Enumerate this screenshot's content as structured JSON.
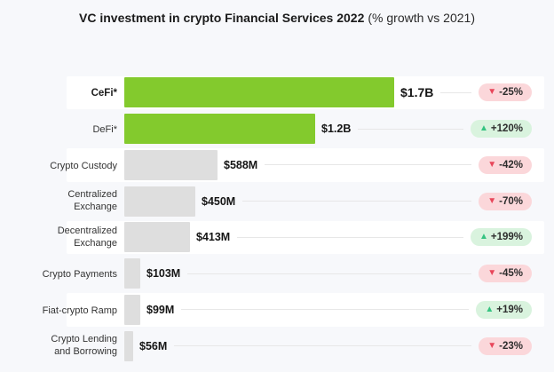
{
  "title": {
    "main": "VC investment in crypto Financial Services 2022",
    "sub": "(% growth vs 2021)"
  },
  "icons": {
    "up": "▲",
    "down": "▼"
  },
  "colors": {
    "page_bg": "#f7f8fb",
    "row_band": "#ffffff",
    "green_bar": "#83ca2d",
    "gray_bar": "#dedede",
    "badge_down_bg": "#fbd7da",
    "badge_up_bg": "#d9f3de",
    "triangle_down": "#e8465a",
    "triangle_up": "#35c381"
  },
  "chart_data": {
    "type": "bar",
    "orientation": "horizontal",
    "title": "VC investment in crypto Financial Services 2022 (% growth vs 2021)",
    "value_unit": "USD millions",
    "max_value_musd": 1700,
    "legend": "none",
    "grid": false,
    "rows": [
      {
        "label": "CeFi*",
        "value_musd": 1700,
        "value_label": "$1.7B",
        "change": "-25%",
        "direction": "down",
        "bar_color": "green",
        "emphasis": true
      },
      {
        "label": "DeFi*",
        "value_musd": 1200,
        "value_label": "$1.2B",
        "change": "+120%",
        "direction": "up",
        "bar_color": "green",
        "emphasis": false
      },
      {
        "label": "Crypto Custody",
        "value_musd": 588,
        "value_label": "$588M",
        "change": "-42%",
        "direction": "down",
        "bar_color": "gray",
        "emphasis": false
      },
      {
        "label": "Centralized Exchange",
        "value_musd": 450,
        "value_label": "$450M",
        "change": "-70%",
        "direction": "down",
        "bar_color": "gray",
        "emphasis": false
      },
      {
        "label": "Decentralized Exchange",
        "value_musd": 413,
        "value_label": "$413M",
        "change": "+199%",
        "direction": "up",
        "bar_color": "gray",
        "emphasis": false
      },
      {
        "label": "Crypto Payments",
        "value_musd": 103,
        "value_label": "$103M",
        "change": "-45%",
        "direction": "down",
        "bar_color": "gray",
        "emphasis": false
      },
      {
        "label": "Fiat-crypto Ramp",
        "value_musd": 99,
        "value_label": "$99M",
        "change": "+19%",
        "direction": "up",
        "bar_color": "gray",
        "emphasis": false
      },
      {
        "label": "Crypto Lending and Borrowing",
        "value_musd": 56,
        "value_label": "$56M",
        "change": "-23%",
        "direction": "down",
        "bar_color": "gray",
        "emphasis": false
      }
    ]
  }
}
